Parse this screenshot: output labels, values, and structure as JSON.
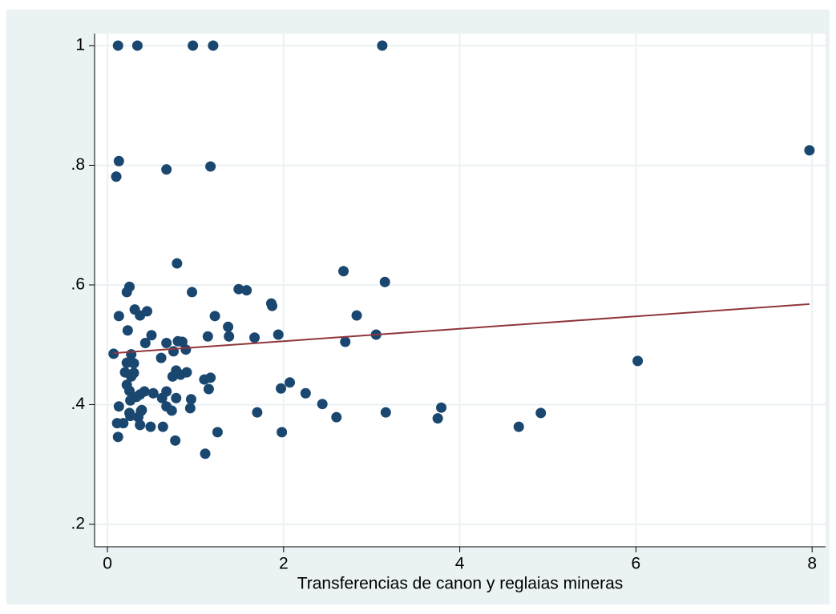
{
  "chart_data": {
    "type": "scatter",
    "x_label": "Transferencias de canon y reglaias mineras",
    "xlim": [
      -0.146,
      8.153
    ],
    "ylim": [
      0.1625,
      1.02
    ],
    "xticks": [
      0,
      2,
      4,
      6,
      8
    ],
    "yticks": [
      {
        "value": 0.2,
        "label": ".2"
      },
      {
        "value": 0.4,
        "label": ".4"
      },
      {
        "value": 0.6,
        "label": ".6"
      },
      {
        "value": 0.8,
        "label": ".8"
      },
      1
    ],
    "grid": true,
    "series": [
      {
        "type": "scatter",
        "color": "#1a476f",
        "x": [
          0.12,
          0.34,
          0.97,
          1.2,
          3.12,
          7.97,
          0.13,
          0.1,
          0.67,
          1.17,
          0.79,
          2.68,
          3.15,
          1.49,
          1.58,
          0.96,
          0.25,
          0.22,
          1.86,
          1.87,
          2.83,
          1.22,
          0.13,
          0.31,
          0.45,
          0.37,
          1.37,
          0.23,
          0.5,
          3.05,
          1.94,
          1.38,
          1.14,
          1.67,
          2.7,
          0.8,
          0.85,
          0.43,
          0.67,
          0.89,
          0.75,
          0.07,
          0.27,
          0.61,
          6.02,
          0.3,
          0.3,
          0.2,
          0.9,
          0.78,
          0.74,
          0.83,
          1.1,
          1.17,
          0.27,
          0.22,
          2.07,
          1.97,
          1.15,
          2.25,
          0.22,
          0.25,
          0.42,
          0.37,
          0.52,
          0.67,
          0.62,
          0.78,
          0.33,
          0.26,
          0.95,
          2.44,
          0.13,
          0.67,
          0.39,
          0.94,
          3.79,
          0.73,
          0.25,
          0.38,
          1.7,
          3.16,
          4.92,
          0.26,
          0.35,
          2.6,
          3.75,
          0.11,
          0.18,
          0.37,
          0.49,
          0.63,
          4.67,
          1.25,
          1.98,
          0.12,
          0.77,
          1.11
        ],
        "values": [
          1.0,
          1.0,
          1.0,
          1.0,
          1.0,
          0.825,
          0.807,
          0.781,
          0.793,
          0.798,
          0.636,
          0.623,
          0.605,
          0.593,
          0.591,
          0.588,
          0.597,
          0.588,
          0.569,
          0.565,
          0.549,
          0.548,
          0.548,
          0.559,
          0.556,
          0.549,
          0.53,
          0.524,
          0.516,
          0.517,
          0.517,
          0.514,
          0.514,
          0.512,
          0.505,
          0.506,
          0.505,
          0.503,
          0.503,
          0.492,
          0.489,
          0.485,
          0.484,
          0.478,
          0.473,
          0.469,
          0.453,
          0.454,
          0.454,
          0.457,
          0.447,
          0.45,
          0.442,
          0.445,
          0.447,
          0.47,
          0.437,
          0.427,
          0.426,
          0.419,
          0.433,
          0.423,
          0.422,
          0.417,
          0.419,
          0.422,
          0.411,
          0.411,
          0.413,
          0.407,
          0.409,
          0.401,
          0.397,
          0.397,
          0.391,
          0.394,
          0.395,
          0.39,
          0.386,
          0.389,
          0.387,
          0.387,
          0.386,
          0.381,
          0.379,
          0.379,
          0.377,
          0.369,
          0.369,
          0.366,
          0.363,
          0.363,
          0.363,
          0.354,
          0.354,
          0.346,
          0.34,
          0.318
        ]
      },
      {
        "type": "line",
        "color": "#90353b",
        "x": [
          0.07,
          7.97
        ],
        "values": [
          0.486,
          0.568
        ]
      }
    ]
  }
}
